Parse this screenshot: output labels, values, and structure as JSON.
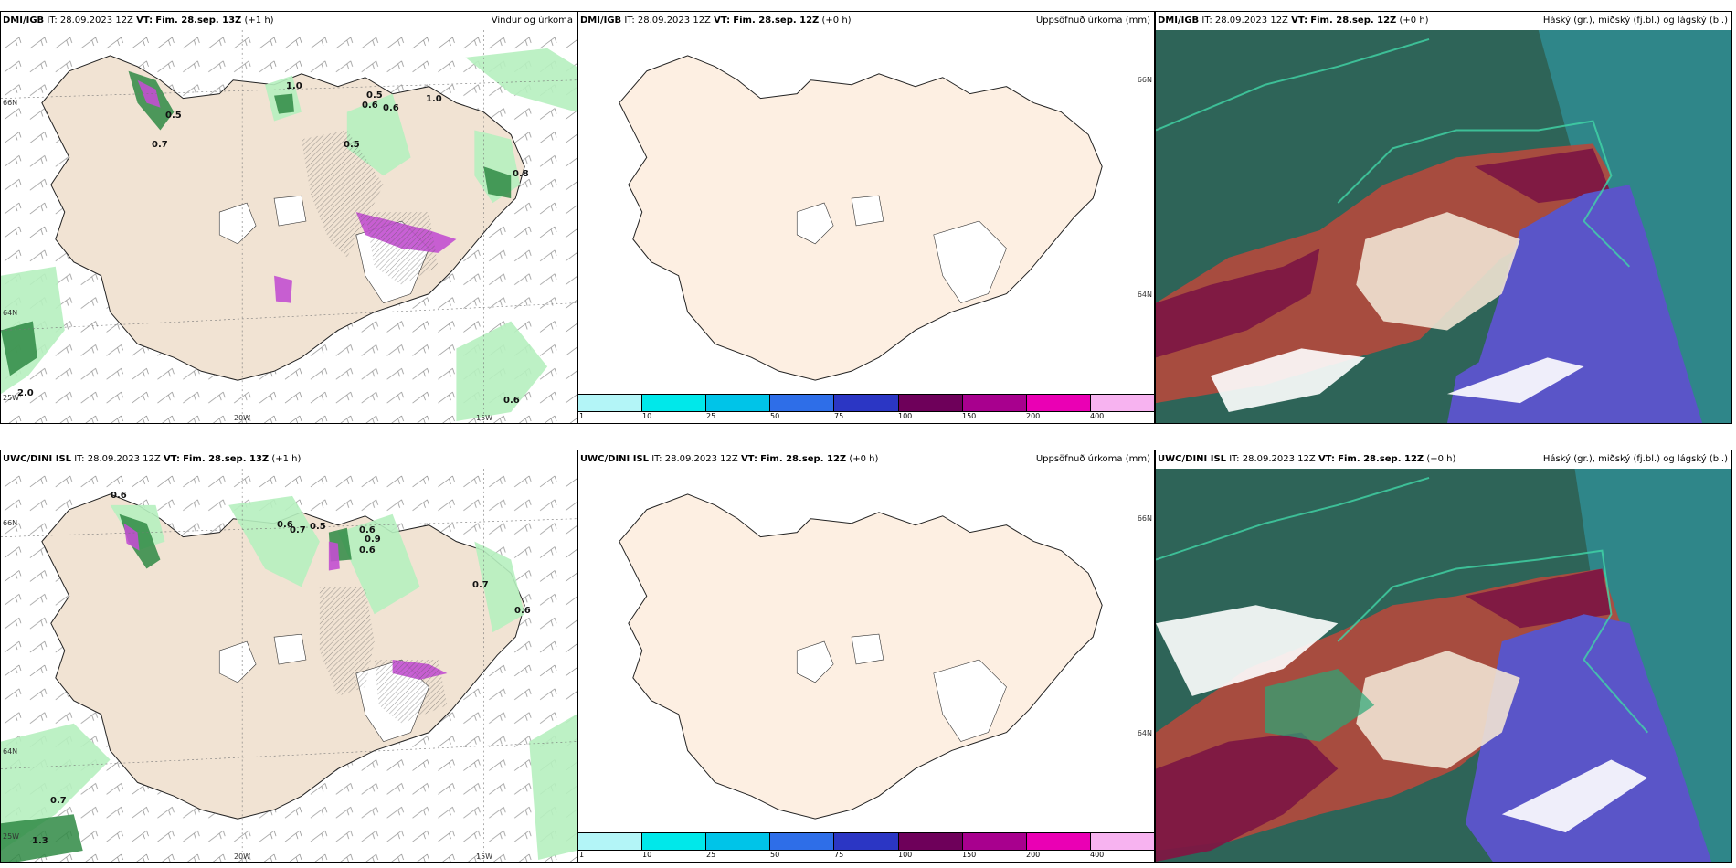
{
  "rows": [
    {
      "wind": {
        "source": "DMI/IGB",
        "it_label": "IT:",
        "it_value": "28.09.2023 12Z",
        "vt_label": "VT:",
        "vt_value": "Fim. 28.sep. 13Z",
        "offset": "(+1 h)",
        "right_title": "Vindur og úrkoma",
        "lat_labels": [
          "66N",
          "64N"
        ],
        "lon_labels": [
          "25W",
          "20W",
          "15W"
        ],
        "values": [
          "0.5",
          "0.7",
          "1.0",
          "0.6",
          "0.5",
          "0.6",
          "1.0",
          "0.5",
          "0.8",
          "2.0",
          "0.6"
        ]
      },
      "precip": {
        "source": "DMI/IGB",
        "it_label": "IT:",
        "it_value": "28.09.2023 12Z",
        "vt_label": "VT:",
        "vt_value": "Fim. 28.sep. 12Z",
        "offset": "(+0 h)",
        "right_title": "Uppsöfnuð úrkoma (mm)",
        "lat_labels": [
          "66N",
          "64N"
        ]
      },
      "cloud": {
        "source": "DMI/IGB",
        "it_label": "IT:",
        "it_value": "28.09.2023 12Z",
        "vt_label": "VT:",
        "vt_value": "Fim. 28.sep. 12Z",
        "offset": "(+0 h)",
        "right_title": "Háský (gr.), miðský (fj.bl.) og lágský (bl.)"
      }
    },
    {
      "wind": {
        "source": "UWC/DINI ISL",
        "it_label": "IT:",
        "it_value": "28.09.2023 12Z",
        "vt_label": "VT:",
        "vt_value": "Fim. 28.sep. 13Z",
        "offset": "(+1 h)",
        "right_title": "",
        "lat_labels": [
          "66N",
          "64N"
        ],
        "lon_labels": [
          "25W",
          "20W",
          "15W"
        ],
        "values": [
          "0.6",
          "0.6",
          "0.7",
          "0.5",
          "0.6",
          "0.9",
          "0.6",
          "0.7",
          "0.6",
          "0.7",
          "1.3"
        ]
      },
      "precip": {
        "source": "UWC/DINI ISL",
        "it_label": "IT:",
        "it_value": "28.09.2023 12Z",
        "vt_label": "VT:",
        "vt_value": "Fim. 28.sep. 12Z",
        "offset": "(+0 h)",
        "right_title": "Uppsöfnuð úrkoma (mm)",
        "lat_labels": [
          "66N",
          "64N"
        ]
      },
      "cloud": {
        "source": "UWC/DINI ISL",
        "it_label": "IT:",
        "it_value": "28.09.2023 12Z",
        "vt_label": "VT:",
        "vt_value": "Fim. 28.sep. 12Z",
        "offset": "(+0 h)",
        "right_title": "Háský (gr.), miðský (fj.bl.) og lágský (bl.)"
      }
    }
  ],
  "legend": {
    "labels": [
      "1",
      "10",
      "25",
      "50",
      "75",
      "100",
      "150",
      "200",
      "400"
    ],
    "colors": [
      "#b3f5f7",
      "#00e8ea",
      "#00c4e8",
      "#2e6ee8",
      "#2b36c4",
      "#6e005a",
      "#a8008e",
      "#ea00b4",
      "#f7b3f0"
    ]
  },
  "colors": {
    "land": "#f1e3d3",
    "land_precip": "#fdefe2",
    "green_light": "#b6f0bf",
    "green_mid": "#6fd07c",
    "green_dark": "#1c6b2f",
    "magenta": "#c24fd0",
    "cloud_high": "#2e6458",
    "cloud_mid": "#b5493d",
    "cloud_maroon": "#7d1743",
    "cloud_low": "#5a55c8",
    "cloud_teal": "#2f8e96"
  }
}
